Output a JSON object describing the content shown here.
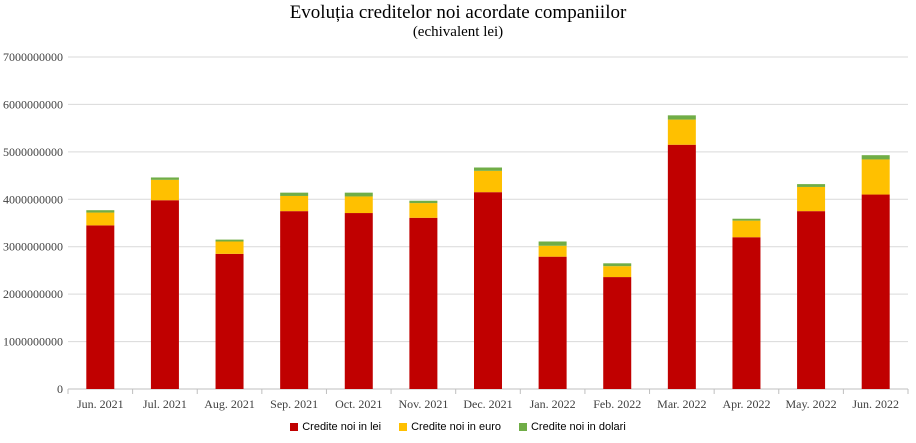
{
  "chart_data": {
    "type": "bar",
    "stacked": true,
    "title": "Evoluția  creditelor noi acordate companiilor",
    "subtitle": "(echivalent  lei)",
    "xlabel": "",
    "ylabel": "",
    "ylim": [
      0,
      7000000000
    ],
    "yticks": [
      "0",
      "1000000000",
      "2000000000",
      "3000000000",
      "4000000000",
      "5000000000",
      "6000000000",
      "7000000000"
    ],
    "grid": true,
    "legend_position": "bottom",
    "categories": [
      "Jun. 2021",
      "Jul. 2021",
      "Aug. 2021",
      "Sep. 2021",
      "Oct. 2021",
      "Nov. 2021",
      "Dec. 2021",
      "Jan. 2022",
      "Feb. 2022",
      "Mar. 2022",
      "Apr. 2022",
      "May. 2022",
      "Jun. 2022"
    ],
    "series": [
      {
        "name": "Credite noi in lei",
        "color": "#c00000",
        "values": [
          3450000000,
          3980000000,
          2850000000,
          3750000000,
          3710000000,
          3610000000,
          4150000000,
          2790000000,
          2360000000,
          5150000000,
          3200000000,
          3750000000,
          4100000000
        ]
      },
      {
        "name": "Credite noi in euro",
        "color": "#ffc000",
        "values": [
          270000000,
          430000000,
          260000000,
          320000000,
          350000000,
          310000000,
          450000000,
          230000000,
          230000000,
          530000000,
          350000000,
          510000000,
          740000000
        ]
      },
      {
        "name": "Credite noi in dolari",
        "color": "#70ad47",
        "values": [
          50000000,
          50000000,
          40000000,
          70000000,
          80000000,
          50000000,
          70000000,
          90000000,
          60000000,
          90000000,
          40000000,
          60000000,
          90000000
        ]
      }
    ]
  }
}
